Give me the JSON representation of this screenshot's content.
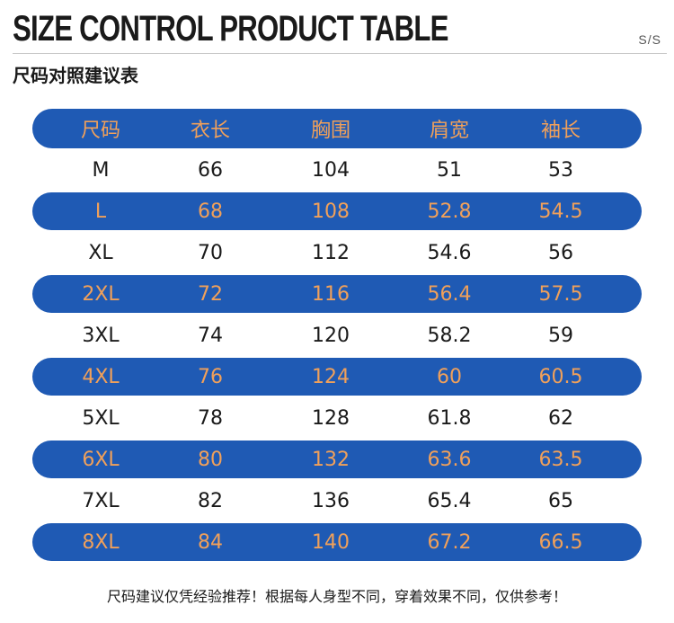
{
  "header": {
    "title": "SIZE CONTROL PRODUCT TABLE",
    "tag": "S/S",
    "subtitle": "尺码对照建议表"
  },
  "table": {
    "columns": [
      "尺码",
      "衣长",
      "胸围",
      "肩宽",
      "袖长"
    ],
    "rows": [
      [
        "M",
        "66",
        "104",
        "51",
        "53"
      ],
      [
        "L",
        "68",
        "108",
        "52.8",
        "54.5"
      ],
      [
        "XL",
        "70",
        "112",
        "54.6",
        "56"
      ],
      [
        "2XL",
        "72",
        "116",
        "56.4",
        "57.5"
      ],
      [
        "3XL",
        "74",
        "120",
        "58.2",
        "59"
      ],
      [
        "4XL",
        "76",
        "124",
        "60",
        "60.5"
      ],
      [
        "5XL",
        "78",
        "128",
        "61.8",
        "62"
      ],
      [
        "6XL",
        "80",
        "132",
        "63.6",
        "63.5"
      ],
      [
        "7XL",
        "82",
        "136",
        "65.4",
        "65"
      ],
      [
        "8XL",
        "84",
        "140",
        "67.2",
        "66.5"
      ]
    ]
  },
  "footer": {
    "note": "尺码建议仅凭经验推荐！根据每人身型不同，穿着效果不同，仅供参考！"
  },
  "colors": {
    "band": "#1f5ab4",
    "band_text": "#f0a05a",
    "plain_text": "#1a1a1a"
  }
}
